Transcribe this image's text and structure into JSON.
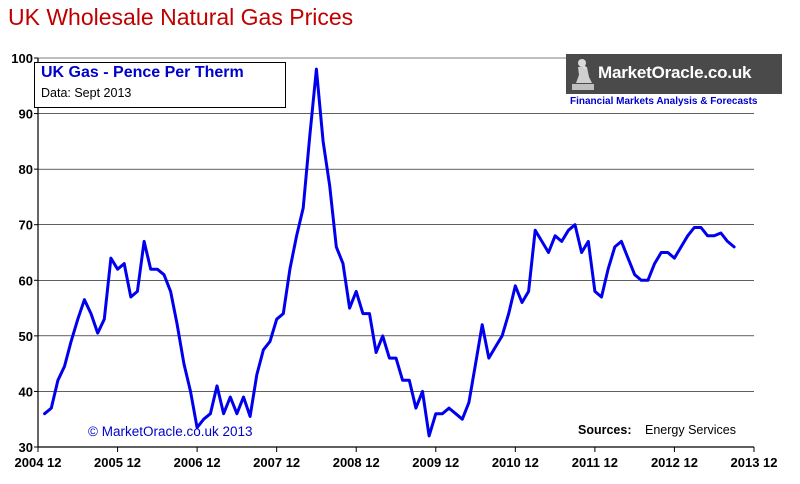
{
  "header": {
    "title": "UK Wholesale Natural Gas Prices"
  },
  "legend": {
    "title": "UK Gas - Pence Per Therm",
    "subtitle": "Data: Sept 2013"
  },
  "logo": {
    "name": "MarketOracle.co.uk",
    "tagline": "Financial Markets Analysis & Forecasts"
  },
  "footer": {
    "copyright": "© MarketOracle.co.uk 2013",
    "sources_label": "Sources:",
    "sources_value": "Energy Services"
  },
  "colors": {
    "line": "#0000ee",
    "title": "#c00000",
    "grid": "#000000"
  },
  "chart_data": {
    "type": "line",
    "title": "UK Wholesale Natural Gas Prices",
    "xlabel": "",
    "ylabel": "",
    "ylim": [
      30,
      100
    ],
    "xlim": [
      "2004-12",
      "2013-12"
    ],
    "yticks": [
      30,
      40,
      50,
      60,
      70,
      80,
      90,
      100
    ],
    "xticks": [
      "2004 12",
      "2005 12",
      "2006 12",
      "2007 12",
      "2008 12",
      "2009 12",
      "2010 12",
      "2011 12",
      "2012 12",
      "2013 12"
    ],
    "grid": "horizontal",
    "legend_position": "top-left",
    "series": [
      {
        "name": "UK Gas - Pence Per Therm",
        "x": [
          "2005-01",
          "2005-02",
          "2005-03",
          "2005-04",
          "2005-05",
          "2005-06",
          "2005-07",
          "2005-08",
          "2005-09",
          "2005-10",
          "2005-11",
          "2005-12",
          "2006-01",
          "2006-02",
          "2006-03",
          "2006-04",
          "2006-05",
          "2006-06",
          "2006-07",
          "2006-08",
          "2006-09",
          "2006-10",
          "2006-11",
          "2006-12",
          "2007-01",
          "2007-02",
          "2007-03",
          "2007-04",
          "2007-05",
          "2007-06",
          "2007-07",
          "2007-08",
          "2007-09",
          "2007-10",
          "2007-11",
          "2007-12",
          "2008-01",
          "2008-02",
          "2008-03",
          "2008-04",
          "2008-05",
          "2008-06",
          "2008-07",
          "2008-08",
          "2008-09",
          "2008-10",
          "2008-11",
          "2008-12",
          "2009-01",
          "2009-02",
          "2009-03",
          "2009-04",
          "2009-05",
          "2009-06",
          "2009-07",
          "2009-08",
          "2009-09",
          "2009-10",
          "2009-11",
          "2009-12",
          "2010-01",
          "2010-02",
          "2010-03",
          "2010-04",
          "2010-05",
          "2010-06",
          "2010-07",
          "2010-08",
          "2010-09",
          "2010-10",
          "2010-11",
          "2010-12",
          "2011-01",
          "2011-02",
          "2011-03",
          "2011-04",
          "2011-05",
          "2011-06",
          "2011-07",
          "2011-08",
          "2011-09",
          "2011-10",
          "2011-11",
          "2011-12",
          "2012-01",
          "2012-02",
          "2012-03",
          "2012-04",
          "2012-05",
          "2012-06",
          "2012-07",
          "2012-08",
          "2012-09",
          "2012-10",
          "2012-11",
          "2012-12",
          "2013-01",
          "2013-02",
          "2013-03",
          "2013-04",
          "2013-05",
          "2013-06",
          "2013-07",
          "2013-08",
          "2013-09"
        ],
        "y": [
          36,
          37,
          42,
          44.5,
          49,
          53,
          56.5,
          54,
          50.5,
          53,
          64,
          62,
          63,
          57,
          58,
          67,
          62,
          62,
          61,
          58,
          52,
          45,
          40,
          33.5,
          35,
          36,
          41,
          36,
          39,
          36,
          39,
          35.5,
          43,
          47.5,
          49,
          53,
          54,
          62,
          68,
          73,
          86,
          98,
          85,
          77,
          66,
          63,
          55,
          58,
          54,
          54,
          47,
          50,
          46,
          46,
          42,
          42,
          37,
          40,
          32,
          36,
          36,
          37,
          36,
          35,
          38,
          45,
          52,
          46,
          48,
          50,
          54,
          59,
          56,
          58,
          69,
          67,
          65,
          68,
          67,
          69,
          70,
          65,
          67,
          58,
          57,
          62,
          66,
          67,
          64,
          61,
          60,
          60,
          63,
          65,
          65,
          64,
          66,
          68,
          69.5,
          69.5,
          68,
          68,
          68.5,
          67,
          66
        ]
      }
    ]
  }
}
